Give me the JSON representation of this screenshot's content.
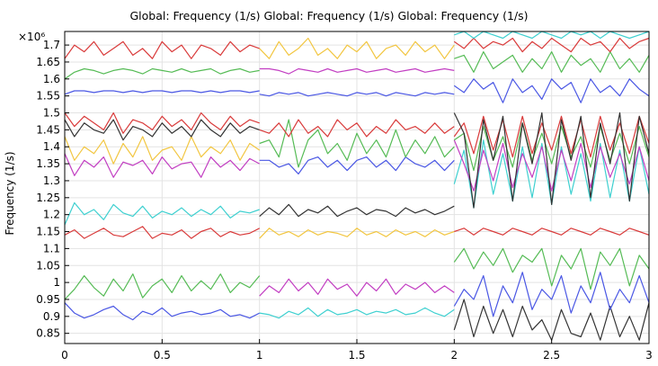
{
  "chart_data": {
    "type": "line",
    "title": "Global: Frequency (1/s)  Global: Frequency (1/s)  Global: Frequency (1/s)",
    "ylabel": "Frequency (1/s)",
    "y_multiplier": "×10⁶",
    "xlim": [
      0,
      3
    ],
    "ylim": [
      0.82,
      1.74
    ],
    "grid": true,
    "x_ticks": [
      "0",
      "0.5",
      "1",
      "1.5",
      "2",
      "2.5",
      "3"
    ],
    "y_ticks": [
      "0.85",
      "0.9",
      "0.95",
      "1",
      "1.05",
      "1.1",
      "1.15",
      "1.2",
      "1.25",
      "1.3",
      "1.35",
      "1.4",
      "1.45",
      "1.5",
      "1.55",
      "1.6",
      "1.65",
      "1.7"
    ],
    "x_step": 0.05,
    "segments": [
      {
        "x_range": [
          0,
          1
        ],
        "series": [
          {
            "color": "#4a57e4",
            "values": [
              0.94,
              0.91,
              0.895,
              0.905,
              0.92,
              0.93,
              0.905,
              0.89,
              0.915,
              0.905,
              0.925,
              0.9,
              0.91,
              0.915,
              0.905,
              0.91,
              0.92,
              0.9,
              0.905,
              0.895,
              0.91
            ]
          },
          {
            "color": "#55bb55",
            "values": [
              0.95,
              0.98,
              1.02,
              0.985,
              0.96,
              1.01,
              0.975,
              1.025,
              0.955,
              0.99,
              1.01,
              0.97,
              1.02,
              0.975,
              1.005,
              0.98,
              1.025,
              0.97,
              1.0,
              0.985,
              1.02
            ]
          },
          {
            "color": "#d93b3b",
            "values": [
              1.14,
              1.155,
              1.13,
              1.145,
              1.16,
              1.14,
              1.135,
              1.15,
              1.165,
              1.13,
              1.145,
              1.14,
              1.155,
              1.13,
              1.15,
              1.16,
              1.135,
              1.15,
              1.14,
              1.145,
              1.16
            ]
          },
          {
            "color": "#3ed0d0",
            "values": [
              1.17,
              1.235,
              1.2,
              1.215,
              1.185,
              1.23,
              1.205,
              1.195,
              1.225,
              1.19,
              1.21,
              1.2,
              1.22,
              1.195,
              1.215,
              1.2,
              1.225,
              1.19,
              1.21,
              1.205,
              1.215
            ]
          },
          {
            "color": "#c23ec2",
            "values": [
              1.38,
              1.315,
              1.36,
              1.34,
              1.37,
              1.31,
              1.355,
              1.345,
              1.36,
              1.32,
              1.37,
              1.335,
              1.35,
              1.355,
              1.31,
              1.37,
              1.34,
              1.36,
              1.33,
              1.365,
              1.35
            ]
          },
          {
            "color": "#f2c641",
            "values": [
              1.43,
              1.36,
              1.4,
              1.38,
              1.42,
              1.35,
              1.41,
              1.37,
              1.43,
              1.36,
              1.39,
              1.4,
              1.36,
              1.43,
              1.37,
              1.4,
              1.38,
              1.42,
              1.36,
              1.41,
              1.39
            ]
          },
          {
            "color": "#333333",
            "values": [
              1.48,
              1.43,
              1.47,
              1.45,
              1.44,
              1.48,
              1.42,
              1.46,
              1.45,
              1.43,
              1.47,
              1.44,
              1.46,
              1.43,
              1.48,
              1.45,
              1.43,
              1.47,
              1.44,
              1.46,
              1.45
            ]
          },
          {
            "color": "#d93b3b",
            "values": [
              1.5,
              1.46,
              1.49,
              1.47,
              1.45,
              1.5,
              1.44,
              1.48,
              1.47,
              1.45,
              1.49,
              1.46,
              1.48,
              1.45,
              1.5,
              1.47,
              1.45,
              1.49,
              1.46,
              1.48,
              1.47
            ]
          },
          {
            "color": "#4a57e4",
            "values": [
              1.555,
              1.565,
              1.565,
              1.56,
              1.565,
              1.565,
              1.56,
              1.565,
              1.56,
              1.565,
              1.565,
              1.56,
              1.565,
              1.565,
              1.56,
              1.565,
              1.56,
              1.565,
              1.565,
              1.56,
              1.565
            ]
          },
          {
            "color": "#55bb55",
            "values": [
              1.6,
              1.62,
              1.63,
              1.625,
              1.615,
              1.625,
              1.63,
              1.625,
              1.615,
              1.63,
              1.625,
              1.62,
              1.63,
              1.62,
              1.625,
              1.63,
              1.615,
              1.625,
              1.63,
              1.62,
              1.625
            ]
          },
          {
            "color": "#d93b3b",
            "values": [
              1.66,
              1.7,
              1.68,
              1.71,
              1.67,
              1.69,
              1.71,
              1.67,
              1.69,
              1.66,
              1.71,
              1.68,
              1.7,
              1.66,
              1.7,
              1.69,
              1.67,
              1.71,
              1.68,
              1.7,
              1.69
            ]
          }
        ]
      },
      {
        "x_range": [
          1,
          2
        ],
        "series": [
          {
            "color": "#3ed0d0",
            "values": [
              0.91,
              0.905,
              0.895,
              0.915,
              0.905,
              0.925,
              0.9,
              0.92,
              0.905,
              0.91,
              0.92,
              0.905,
              0.915,
              0.91,
              0.92,
              0.905,
              0.91,
              0.925,
              0.91,
              0.9,
              0.92
            ]
          },
          {
            "color": "#c23ec2",
            "values": [
              0.96,
              0.99,
              0.97,
              1.01,
              0.975,
              1.0,
              0.965,
              1.01,
              0.98,
              0.995,
              0.96,
              1.0,
              0.975,
              1.01,
              0.965,
              0.995,
              0.98,
              1.0,
              0.97,
              0.99,
              0.97
            ]
          },
          {
            "color": "#f2c641",
            "values": [
              1.13,
              1.16,
              1.14,
              1.15,
              1.135,
              1.155,
              1.14,
              1.15,
              1.145,
              1.135,
              1.16,
              1.14,
              1.15,
              1.135,
              1.155,
              1.14,
              1.15,
              1.135,
              1.155,
              1.14,
              1.15
            ]
          },
          {
            "color": "#333333",
            "values": [
              1.195,
              1.22,
              1.2,
              1.23,
              1.195,
              1.215,
              1.205,
              1.225,
              1.195,
              1.21,
              1.22,
              1.2,
              1.215,
              1.21,
              1.195,
              1.22,
              1.205,
              1.215,
              1.2,
              1.21,
              1.225
            ]
          },
          {
            "color": "#4a57e4",
            "values": [
              1.36,
              1.36,
              1.34,
              1.35,
              1.32,
              1.36,
              1.37,
              1.34,
              1.36,
              1.33,
              1.36,
              1.37,
              1.34,
              1.36,
              1.33,
              1.37,
              1.35,
              1.34,
              1.36,
              1.33,
              1.36
            ]
          },
          {
            "color": "#55bb55",
            "values": [
              1.41,
              1.42,
              1.37,
              1.48,
              1.34,
              1.42,
              1.45,
              1.38,
              1.41,
              1.36,
              1.44,
              1.38,
              1.42,
              1.37,
              1.45,
              1.37,
              1.42,
              1.38,
              1.43,
              1.37,
              1.4
            ]
          },
          {
            "color": "#d93b3b",
            "values": [
              1.45,
              1.44,
              1.47,
              1.43,
              1.48,
              1.44,
              1.46,
              1.43,
              1.48,
              1.45,
              1.47,
              1.43,
              1.46,
              1.44,
              1.48,
              1.45,
              1.46,
              1.44,
              1.47,
              1.44,
              1.46
            ]
          },
          {
            "color": "#4a57e4",
            "values": [
              1.555,
              1.55,
              1.56,
              1.555,
              1.56,
              1.55,
              1.555,
              1.56,
              1.555,
              1.55,
              1.56,
              1.555,
              1.56,
              1.55,
              1.56,
              1.555,
              1.55,
              1.56,
              1.555,
              1.56,
              1.555
            ]
          },
          {
            "color": "#c23ec2",
            "values": [
              1.63,
              1.63,
              1.625,
              1.615,
              1.63,
              1.625,
              1.62,
              1.63,
              1.62,
              1.625,
              1.63,
              1.62,
              1.625,
              1.63,
              1.62,
              1.625,
              1.63,
              1.62,
              1.625,
              1.63,
              1.625
            ]
          },
          {
            "color": "#f2c641",
            "values": [
              1.69,
              1.66,
              1.71,
              1.67,
              1.69,
              1.72,
              1.67,
              1.69,
              1.66,
              1.7,
              1.68,
              1.71,
              1.66,
              1.69,
              1.7,
              1.67,
              1.71,
              1.68,
              1.7,
              1.66,
              1.7
            ]
          }
        ]
      },
      {
        "x_range": [
          2,
          3
        ],
        "series": [
          {
            "color": "#333333",
            "values": [
              0.86,
              0.95,
              0.84,
              0.93,
              0.85,
              0.92,
              0.84,
              0.93,
              0.86,
              0.89,
              0.83,
              0.92,
              0.85,
              0.84,
              0.91,
              0.83,
              0.93,
              0.84,
              0.9,
              0.83,
              0.94
            ]
          },
          {
            "color": "#4a57e4",
            "values": [
              0.93,
              0.98,
              0.95,
              1.02,
              0.9,
              0.99,
              0.94,
              1.03,
              0.92,
              0.98,
              0.95,
              1.02,
              0.91,
              0.99,
              0.94,
              1.03,
              0.92,
              0.98,
              0.94,
              1.02,
              0.94
            ]
          },
          {
            "color": "#55bb55",
            "values": [
              1.06,
              1.1,
              1.04,
              1.09,
              1.05,
              1.1,
              1.03,
              1.08,
              1.06,
              1.1,
              0.99,
              1.08,
              1.04,
              1.1,
              0.98,
              1.09,
              1.05,
              1.1,
              0.99,
              1.08,
              1.04
            ]
          },
          {
            "color": "#d93b3b",
            "values": [
              1.15,
              1.16,
              1.14,
              1.16,
              1.15,
              1.14,
              1.16,
              1.15,
              1.14,
              1.16,
              1.15,
              1.14,
              1.16,
              1.15,
              1.14,
              1.16,
              1.15,
              1.14,
              1.16,
              1.15,
              1.14
            ]
          },
          {
            "color": "#3ed0d0",
            "values": [
              1.29,
              1.39,
              1.22,
              1.42,
              1.26,
              1.38,
              1.24,
              1.4,
              1.25,
              1.41,
              1.23,
              1.4,
              1.26,
              1.38,
              1.24,
              1.41,
              1.25,
              1.39,
              1.24,
              1.4,
              1.26
            ]
          },
          {
            "color": "#c23ec2",
            "values": [
              1.42,
              1.35,
              1.27,
              1.39,
              1.3,
              1.41,
              1.28,
              1.38,
              1.31,
              1.4,
              1.27,
              1.39,
              1.3,
              1.41,
              1.28,
              1.4,
              1.31,
              1.38,
              1.29,
              1.4,
              1.3
            ]
          },
          {
            "color": "#55bb55",
            "values": [
              1.42,
              1.44,
              1.33,
              1.46,
              1.36,
              1.43,
              1.34,
              1.47,
              1.36,
              1.44,
              1.35,
              1.46,
              1.37,
              1.43,
              1.34,
              1.46,
              1.36,
              1.44,
              1.35,
              1.46,
              1.37
            ]
          },
          {
            "color": "#d93b3b",
            "values": [
              1.43,
              1.47,
              1.38,
              1.49,
              1.39,
              1.48,
              1.37,
              1.49,
              1.38,
              1.47,
              1.39,
              1.49,
              1.38,
              1.48,
              1.37,
              1.49,
              1.39,
              1.47,
              1.38,
              1.49,
              1.41
            ]
          },
          {
            "color": "#333333",
            "values": [
              1.5,
              1.44,
              1.22,
              1.48,
              1.36,
              1.49,
              1.24,
              1.47,
              1.35,
              1.5,
              1.23,
              1.48,
              1.36,
              1.49,
              1.25,
              1.47,
              1.35,
              1.5,
              1.24,
              1.49,
              1.38
            ]
          },
          {
            "color": "#4a57e4",
            "values": [
              1.58,
              1.56,
              1.6,
              1.57,
              1.59,
              1.53,
              1.6,
              1.56,
              1.58,
              1.54,
              1.6,
              1.57,
              1.59,
              1.53,
              1.6,
              1.56,
              1.58,
              1.55,
              1.6,
              1.57,
              1.55
            ]
          },
          {
            "color": "#55bb55",
            "values": [
              1.66,
              1.67,
              1.62,
              1.68,
              1.63,
              1.65,
              1.67,
              1.62,
              1.66,
              1.63,
              1.68,
              1.62,
              1.67,
              1.64,
              1.66,
              1.62,
              1.68,
              1.63,
              1.66,
              1.62,
              1.67
            ]
          },
          {
            "color": "#d93b3b",
            "values": [
              1.71,
              1.69,
              1.72,
              1.69,
              1.71,
              1.7,
              1.72,
              1.68,
              1.71,
              1.69,
              1.72,
              1.7,
              1.68,
              1.72,
              1.7,
              1.71,
              1.68,
              1.72,
              1.69,
              1.71,
              1.72
            ]
          },
          {
            "color": "#3ed0d0",
            "values": [
              1.73,
              1.74,
              1.72,
              1.74,
              1.73,
              1.72,
              1.74,
              1.73,
              1.72,
              1.74,
              1.73,
              1.72,
              1.74,
              1.73,
              1.74,
              1.72,
              1.74,
              1.73,
              1.72,
              1.73,
              1.74
            ]
          }
        ]
      }
    ]
  }
}
